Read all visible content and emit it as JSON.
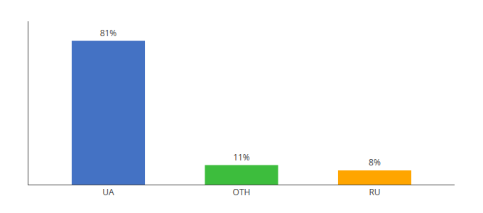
{
  "chart_data": {
    "type": "bar",
    "categories": [
      "UA",
      "OTH",
      "RU"
    ],
    "values": [
      81,
      11,
      8
    ],
    "value_labels": [
      "81%",
      "11%",
      "8%"
    ],
    "colors": [
      "#4472C4",
      "#3DBD3D",
      "#FFA500"
    ],
    "ylim": [
      0,
      92
    ],
    "grid": false,
    "data_labels": true,
    "tick_labels": "x"
  }
}
